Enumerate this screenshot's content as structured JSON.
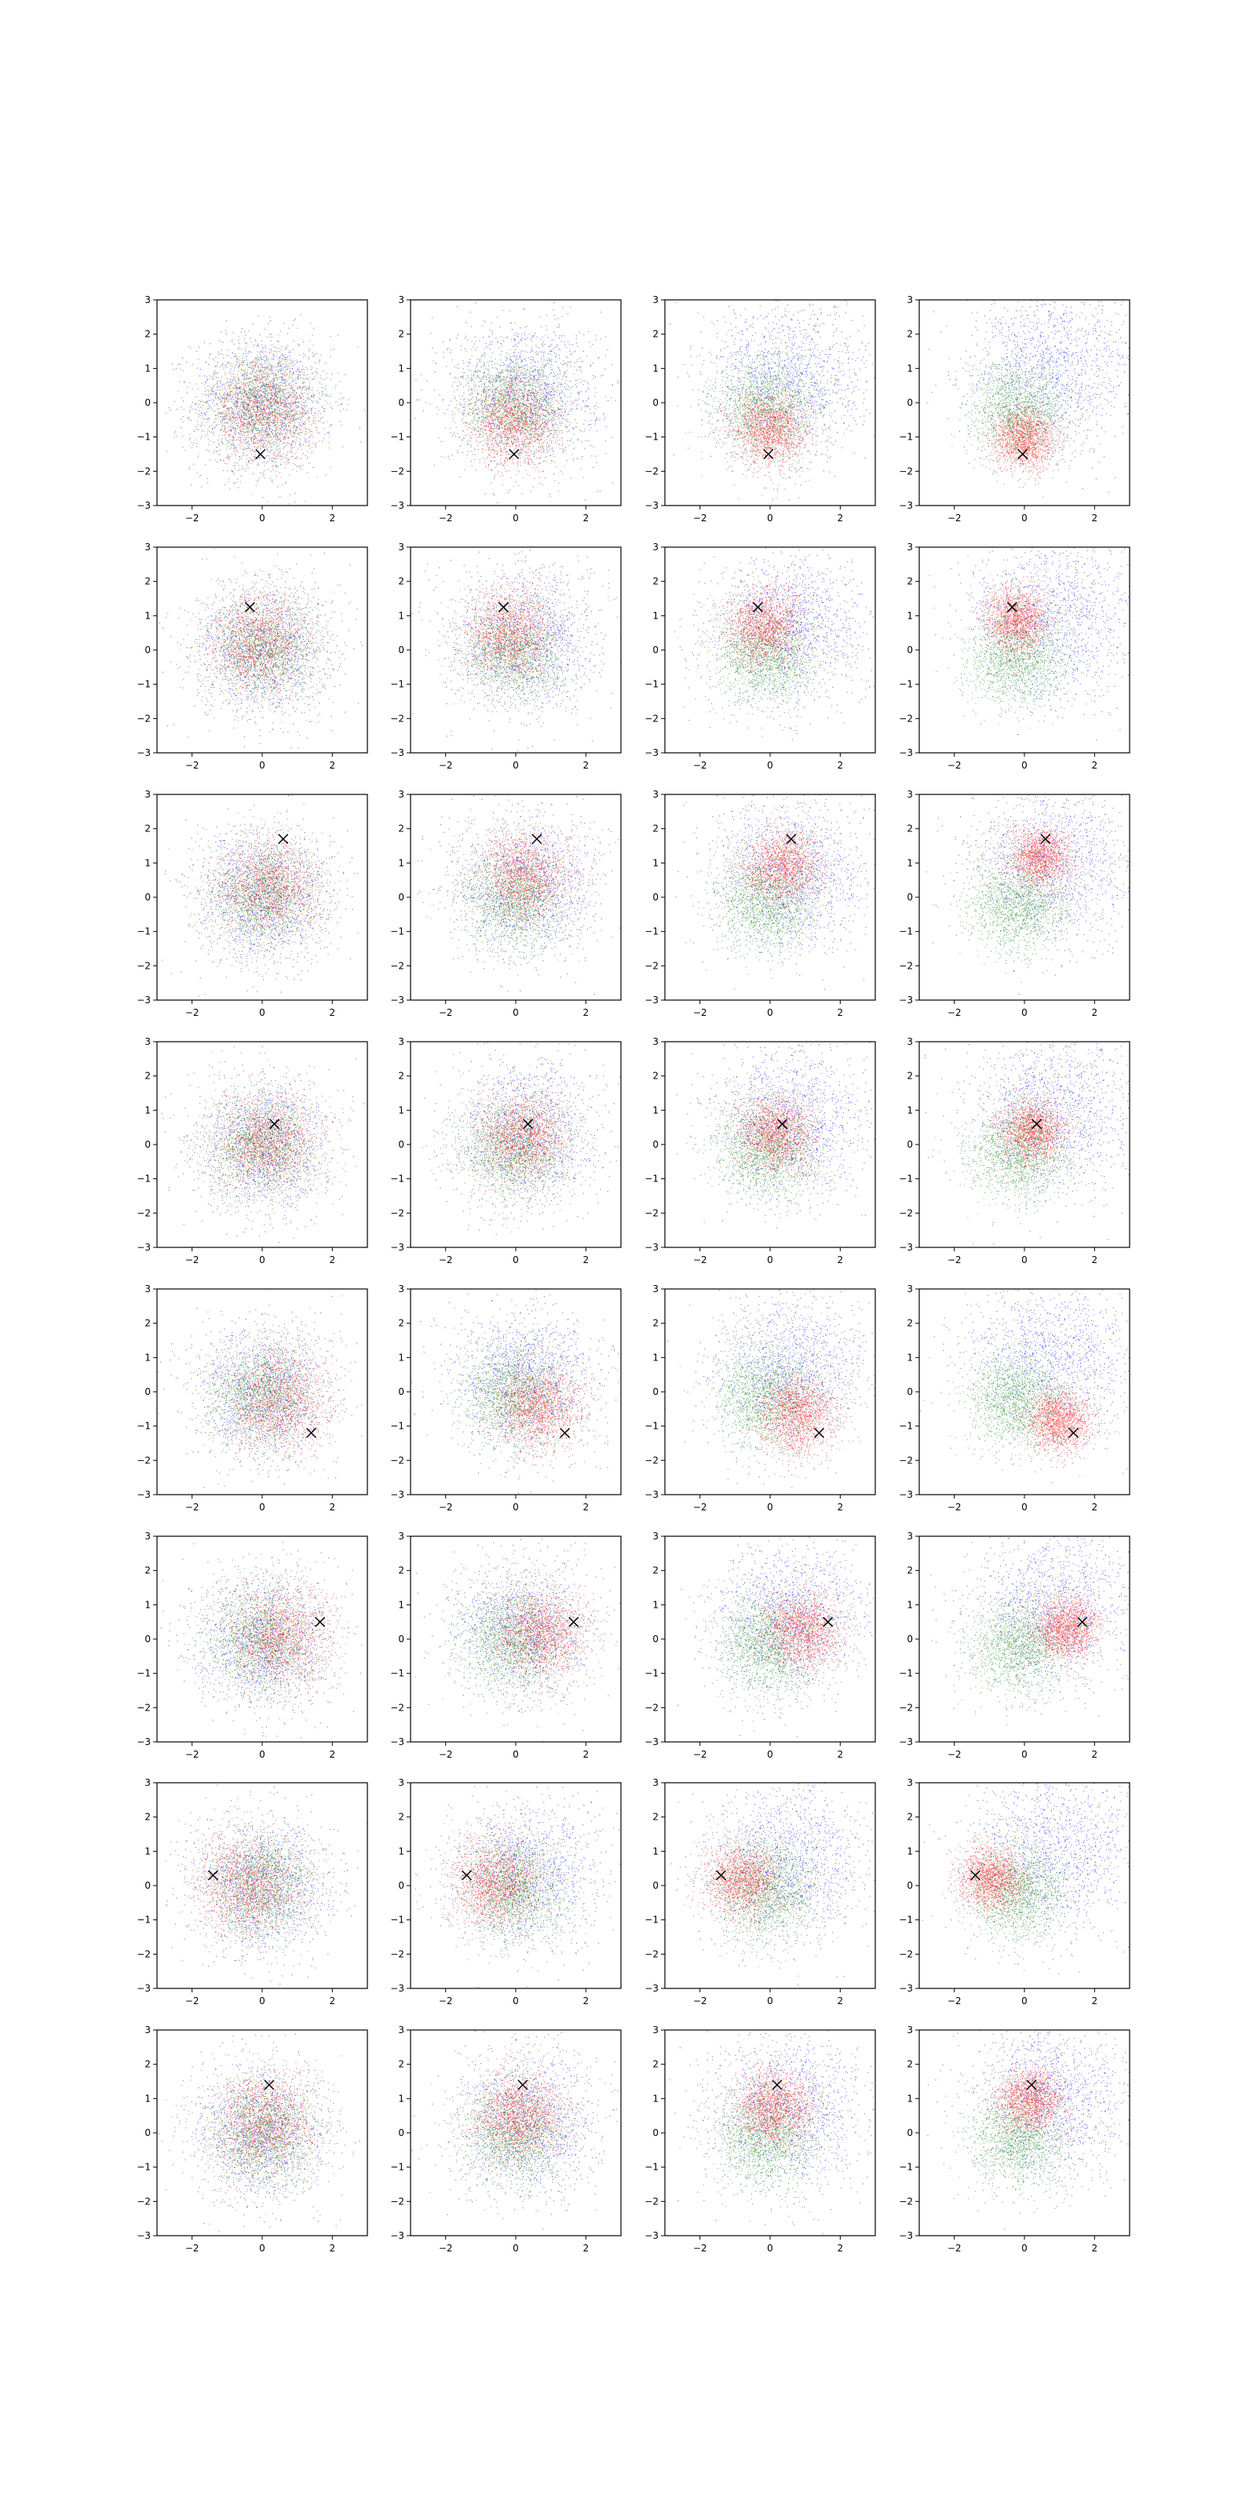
{
  "figure": {
    "rows": 8,
    "cols": 4,
    "panel_type": "scatter",
    "xlim": [
      -3,
      3
    ],
    "ylim": [
      -3,
      3
    ],
    "xticks": [
      -2,
      0,
      2
    ],
    "yticks": [
      -3,
      -2,
      -1,
      0,
      1,
      2,
      3
    ],
    "xtick_labels": [
      "−2",
      "0",
      "2"
    ],
    "ytick_labels": [
      "−3",
      "−2",
      "−1",
      "0",
      "1",
      "2",
      "3"
    ],
    "grid": false,
    "legend": "none",
    "marker_color": "#000000",
    "point_colors": {
      "red": "#ff0000",
      "green": "#008000",
      "blue": "#0000ff"
    }
  },
  "chart_data": {
    "type": "scatter",
    "description_of_layout": "8 rows x 4 columns of scatter panels; each row shares one marked point (x). Columns show progressively separated red/green/blue point clouds.",
    "row_markers": [
      {
        "x": -0.05,
        "y": -1.5
      },
      {
        "x": -0.35,
        "y": 1.25
      },
      {
        "x": 0.6,
        "y": 1.7
      },
      {
        "x": 0.35,
        "y": 0.6
      },
      {
        "x": 1.4,
        "y": -1.2
      },
      {
        "x": 1.65,
        "y": 0.5
      },
      {
        "x": -1.4,
        "y": 0.3
      },
      {
        "x": 0.2,
        "y": 1.4
      }
    ],
    "series": [
      {
        "color": "red"
      },
      {
        "color": "green"
      },
      {
        "color": "blue"
      }
    ]
  }
}
